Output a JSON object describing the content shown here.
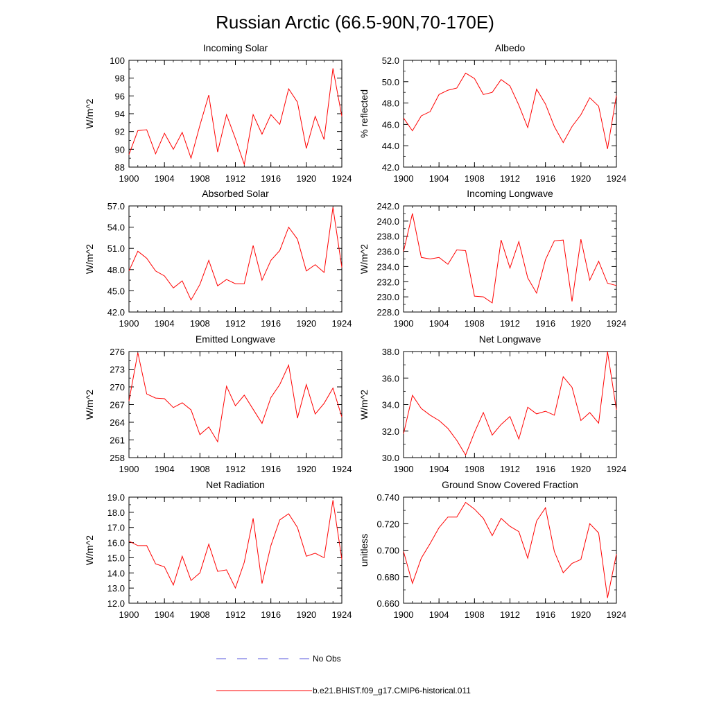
{
  "figure": {
    "title": "Russian Arctic (66.5-90N,70-170E)",
    "line_color": "#ff0000",
    "obs_color": "#5555dd"
  },
  "legend": {
    "items": [
      {
        "label": "No Obs",
        "style": "dashed",
        "color": "#5555dd"
      },
      {
        "label": "b.e21.BHIST.f09_g17.CMIP6-historical.011",
        "style": "solid",
        "color": "#ff0000"
      }
    ]
  },
  "chart_data": [
    {
      "type": "line",
      "title": "Incoming Solar",
      "ylabel": "W/m^2",
      "xlim": [
        1900,
        1924
      ],
      "ylim": [
        88,
        100
      ],
      "xticks": [
        1900,
        1904,
        1908,
        1912,
        1916,
        1920,
        1924
      ],
      "yticks": [
        88,
        90,
        92,
        94,
        96,
        98,
        100
      ],
      "ytick_labels": [
        "88",
        "90",
        "92",
        "94",
        "96",
        "98",
        "100"
      ],
      "x": [
        1900,
        1901,
        1902,
        1903,
        1904,
        1905,
        1906,
        1907,
        1908,
        1909,
        1910,
        1911,
        1912,
        1913,
        1914,
        1915,
        1916,
        1917,
        1918,
        1919,
        1920,
        1921,
        1922,
        1923,
        1924
      ],
      "series": [
        {
          "name": "b.e21.BHIST.f09_g17.CMIP6-historical.011",
          "values": [
            89.4,
            92.1,
            92.2,
            89.5,
            91.8,
            90.0,
            91.9,
            89.0,
            92.7,
            96.1,
            89.7,
            93.9,
            91.2,
            88.3,
            93.9,
            91.7,
            93.9,
            92.8,
            96.8,
            95.3,
            90.1,
            93.7,
            91.1,
            99.1,
            93.7
          ]
        }
      ]
    },
    {
      "type": "line",
      "title": "Albedo",
      "ylabel": "% reflected",
      "xlim": [
        1900,
        1924
      ],
      "ylim": [
        42,
        52
      ],
      "xticks": [
        1900,
        1904,
        1908,
        1912,
        1916,
        1920,
        1924
      ],
      "yticks": [
        42,
        44,
        46,
        48,
        50,
        52
      ],
      "ytick_labels": [
        "42.0",
        "44.0",
        "46.0",
        "48.0",
        "50.0",
        "52.0"
      ],
      "x": [
        1900,
        1901,
        1902,
        1903,
        1904,
        1905,
        1906,
        1907,
        1908,
        1909,
        1910,
        1911,
        1912,
        1913,
        1914,
        1915,
        1916,
        1917,
        1918,
        1919,
        1920,
        1921,
        1922,
        1923,
        1924
      ],
      "series": [
        {
          "name": "b.e21.BHIST.f09_g17.CMIP6-historical.011",
          "values": [
            46.6,
            45.4,
            46.8,
            47.2,
            48.8,
            49.2,
            49.4,
            50.8,
            50.3,
            48.8,
            49.0,
            50.2,
            49.6,
            47.8,
            45.7,
            49.3,
            47.9,
            45.8,
            44.3,
            45.8,
            46.9,
            48.5,
            47.7,
            43.7,
            48.7
          ]
        }
      ]
    },
    {
      "type": "line",
      "title": "Absorbed Solar",
      "ylabel": "W/m^2",
      "xlim": [
        1900,
        1924
      ],
      "ylim": [
        42,
        57
      ],
      "xticks": [
        1900,
        1904,
        1908,
        1912,
        1916,
        1920,
        1924
      ],
      "yticks": [
        42,
        45,
        48,
        51,
        54,
        57
      ],
      "ytick_labels": [
        "42.0",
        "45.0",
        "48.0",
        "51.0",
        "54.0",
        "57.0"
      ],
      "x": [
        1900,
        1901,
        1902,
        1903,
        1904,
        1905,
        1906,
        1907,
        1908,
        1909,
        1910,
        1911,
        1912,
        1913,
        1914,
        1915,
        1916,
        1917,
        1918,
        1919,
        1920,
        1921,
        1922,
        1923,
        1924
      ],
      "series": [
        {
          "name": "b.e21.BHIST.f09_g17.CMIP6-historical.011",
          "values": [
            47.8,
            50.6,
            49.6,
            47.8,
            47.1,
            45.4,
            46.4,
            43.7,
            45.9,
            49.3,
            45.7,
            46.6,
            46.0,
            46.0,
            51.4,
            46.5,
            49.3,
            50.7,
            54.0,
            52.3,
            47.8,
            48.7,
            47.6,
            56.8,
            48.3
          ]
        }
      ]
    },
    {
      "type": "line",
      "title": "Incoming Longwave",
      "ylabel": "W/m^2",
      "xlim": [
        1900,
        1924
      ],
      "ylim": [
        228,
        242
      ],
      "xticks": [
        1900,
        1904,
        1908,
        1912,
        1916,
        1920,
        1924
      ],
      "yticks": [
        228,
        230,
        232,
        234,
        236,
        238,
        240,
        242
      ],
      "ytick_labels": [
        "228.0",
        "230.0",
        "232.0",
        "234.0",
        "236.0",
        "238.0",
        "240.0",
        "242.0"
      ],
      "x": [
        1900,
        1901,
        1902,
        1903,
        1904,
        1905,
        1906,
        1907,
        1908,
        1909,
        1910,
        1911,
        1912,
        1913,
        1914,
        1915,
        1916,
        1917,
        1918,
        1919,
        1920,
        1921,
        1922,
        1923,
        1924
      ],
      "series": [
        {
          "name": "b.e21.BHIST.f09_g17.CMIP6-historical.011",
          "values": [
            236.0,
            241.0,
            235.2,
            235.0,
            235.2,
            234.3,
            236.2,
            236.1,
            230.1,
            230.0,
            229.2,
            237.5,
            233.8,
            237.3,
            232.5,
            230.5,
            234.9,
            237.4,
            237.5,
            229.4,
            237.6,
            232.2,
            234.7,
            231.8,
            231.5
          ]
        }
      ]
    },
    {
      "type": "line",
      "title": "Emitted Longwave",
      "ylabel": "W/m^2",
      "xlim": [
        1900,
        1924
      ],
      "ylim": [
        258,
        276
      ],
      "xticks": [
        1900,
        1904,
        1908,
        1912,
        1916,
        1920,
        1924
      ],
      "yticks": [
        258,
        261,
        264,
        267,
        270,
        273,
        276
      ],
      "ytick_labels": [
        "258",
        "261",
        "264",
        "267",
        "270",
        "273",
        "276"
      ],
      "x": [
        1900,
        1901,
        1902,
        1903,
        1904,
        1905,
        1906,
        1907,
        1908,
        1909,
        1910,
        1911,
        1912,
        1913,
        1914,
        1915,
        1916,
        1917,
        1918,
        1919,
        1920,
        1921,
        1922,
        1923,
        1924
      ],
      "series": [
        {
          "name": "b.e21.BHIST.f09_g17.CMIP6-historical.011",
          "values": [
            267.6,
            275.8,
            268.8,
            268.1,
            268.0,
            266.5,
            267.3,
            266.1,
            261.9,
            263.2,
            260.7,
            270.1,
            266.8,
            268.6,
            266.2,
            263.8,
            268.2,
            270.4,
            273.7,
            264.7,
            270.4,
            265.4,
            267.2,
            269.8,
            264.9
          ]
        }
      ]
    },
    {
      "type": "line",
      "title": "Net Longwave",
      "ylabel": "W/m^2",
      "xlim": [
        1900,
        1924
      ],
      "ylim": [
        30,
        38
      ],
      "xticks": [
        1900,
        1904,
        1908,
        1912,
        1916,
        1920,
        1924
      ],
      "yticks": [
        30,
        32,
        34,
        36,
        38
      ],
      "ytick_labels": [
        "30.0",
        "32.0",
        "34.0",
        "36.0",
        "38.0"
      ],
      "x": [
        1900,
        1901,
        1902,
        1903,
        1904,
        1905,
        1906,
        1907,
        1908,
        1909,
        1910,
        1911,
        1912,
        1913,
        1914,
        1915,
        1916,
        1917,
        1918,
        1919,
        1920,
        1921,
        1922,
        1923,
        1924
      ],
      "series": [
        {
          "name": "b.e21.BHIST.f09_g17.CMIP6-historical.011",
          "values": [
            31.8,
            34.7,
            33.7,
            33.2,
            32.8,
            32.2,
            31.3,
            30.2,
            31.9,
            33.4,
            31.7,
            32.5,
            33.1,
            31.4,
            33.8,
            33.3,
            33.5,
            33.2,
            36.1,
            35.3,
            32.8,
            33.4,
            32.6,
            38.0,
            33.6
          ]
        }
      ]
    },
    {
      "type": "line",
      "title": "Net Radiation",
      "ylabel": "W/m^2",
      "xlim": [
        1900,
        1924
      ],
      "ylim": [
        12,
        19
      ],
      "xticks": [
        1900,
        1904,
        1908,
        1912,
        1916,
        1920,
        1924
      ],
      "yticks": [
        12,
        13,
        14,
        15,
        16,
        17,
        18,
        19
      ],
      "ytick_labels": [
        "12.0",
        "13.0",
        "14.0",
        "15.0",
        "16.0",
        "17.0",
        "18.0",
        "19.0"
      ],
      "x": [
        1900,
        1901,
        1902,
        1903,
        1904,
        1905,
        1906,
        1907,
        1908,
        1909,
        1910,
        1911,
        1912,
        1913,
        1914,
        1915,
        1916,
        1917,
        1918,
        1919,
        1920,
        1921,
        1922,
        1923,
        1924
      ],
      "series": [
        {
          "name": "b.e21.BHIST.f09_g17.CMIP6-historical.011",
          "values": [
            16.1,
            15.8,
            15.8,
            14.6,
            14.4,
            13.2,
            15.1,
            13.5,
            14.0,
            15.9,
            14.1,
            14.2,
            13.0,
            14.7,
            17.6,
            13.3,
            15.8,
            17.5,
            17.9,
            17.0,
            15.1,
            15.3,
            15.0,
            18.8,
            14.9
          ]
        }
      ]
    },
    {
      "type": "line",
      "title": "Ground Snow Covered Fraction",
      "ylabel": "unitless",
      "xlim": [
        1900,
        1924
      ],
      "ylim": [
        0.66,
        0.74
      ],
      "xticks": [
        1900,
        1904,
        1908,
        1912,
        1916,
        1920,
        1924
      ],
      "yticks": [
        0.66,
        0.68,
        0.7,
        0.72,
        0.74
      ],
      "ytick_labels": [
        "0.660",
        "0.680",
        "0.700",
        "0.720",
        "0.740"
      ],
      "x": [
        1900,
        1901,
        1902,
        1903,
        1904,
        1905,
        1906,
        1907,
        1908,
        1909,
        1910,
        1911,
        1912,
        1913,
        1914,
        1915,
        1916,
        1917,
        1918,
        1919,
        1920,
        1921,
        1922,
        1923,
        1924
      ],
      "series": [
        {
          "name": "b.e21.BHIST.f09_g17.CMIP6-historical.011",
          "values": [
            0.699,
            0.675,
            0.694,
            0.705,
            0.717,
            0.725,
            0.725,
            0.736,
            0.731,
            0.724,
            0.711,
            0.724,
            0.718,
            0.714,
            0.694,
            0.722,
            0.732,
            0.699,
            0.683,
            0.69,
            0.693,
            0.72,
            0.713,
            0.664,
            0.697
          ]
        }
      ]
    }
  ]
}
